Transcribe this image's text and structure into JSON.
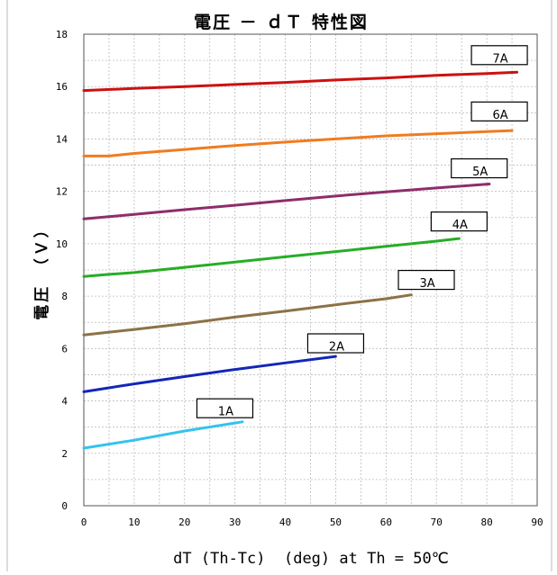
{
  "chart_data": {
    "type": "line",
    "title": "電圧 － ｄＴ 特性図",
    "xlabel": "dT (Th-Tc)  (deg) at Th = 50℃",
    "ylabel": "電圧　（Ｖ）",
    "xlim": [
      0,
      90
    ],
    "ylim": [
      0,
      18
    ],
    "xticks": [
      0,
      10,
      20,
      30,
      40,
      50,
      60,
      70,
      80,
      90
    ],
    "yticks": [
      0,
      2,
      4,
      6,
      8,
      10,
      12,
      14,
      16,
      18
    ],
    "grid": true,
    "series": [
      {
        "name": "1A",
        "color": "#33c3ee",
        "x": [
          0,
          10,
          20,
          31.5
        ],
        "y": [
          2.2,
          2.5,
          2.85,
          3.2
        ]
      },
      {
        "name": "2A",
        "color": "#1326b8",
        "x": [
          0,
          5,
          10,
          20,
          30,
          40,
          50
        ],
        "y": [
          4.35,
          4.5,
          4.65,
          4.93,
          5.2,
          5.45,
          5.7
        ]
      },
      {
        "name": "3A",
        "color": "#8c7246",
        "x": [
          0,
          10,
          20,
          30,
          40,
          50,
          60,
          65
        ],
        "y": [
          6.52,
          6.73,
          6.95,
          7.2,
          7.43,
          7.67,
          7.9,
          8.05
        ]
      },
      {
        "name": "4A",
        "color": "#27ad27",
        "x": [
          0,
          5,
          10,
          20,
          30,
          40,
          50,
          60,
          70,
          74.5
        ],
        "y": [
          8.75,
          8.83,
          8.9,
          9.1,
          9.3,
          9.5,
          9.7,
          9.9,
          10.1,
          10.2
        ]
      },
      {
        "name": "5A",
        "color": "#8f2d6a",
        "x": [
          0,
          10,
          20,
          30,
          40,
          50,
          60,
          70,
          80.5
        ],
        "y": [
          10.95,
          11.12,
          11.3,
          11.47,
          11.65,
          11.82,
          11.98,
          12.13,
          12.28
        ]
      },
      {
        "name": "6A",
        "color": "#f07c1f",
        "x": [
          0,
          5,
          10,
          20,
          30,
          40,
          50,
          60,
          70,
          80,
          85
        ],
        "y": [
          13.35,
          13.35,
          13.45,
          13.6,
          13.75,
          13.88,
          14.0,
          14.12,
          14.2,
          14.28,
          14.32
        ]
      },
      {
        "name": "7A",
        "color": "#cc1111",
        "x": [
          0,
          10,
          20,
          30,
          40,
          50,
          60,
          70,
          80,
          86
        ],
        "y": [
          15.85,
          15.93,
          16.0,
          16.08,
          16.16,
          16.25,
          16.33,
          16.43,
          16.5,
          16.55
        ]
      }
    ],
    "annotations": [
      {
        "text": "1A",
        "x": 28,
        "y": 3.72
      },
      {
        "text": "2A",
        "x": 50,
        "y": 6.2
      },
      {
        "text": "3A",
        "x": 68,
        "y": 8.62
      },
      {
        "text": "4A",
        "x": 74.5,
        "y": 10.85
      },
      {
        "text": "5A",
        "x": 78.5,
        "y": 12.88
      },
      {
        "text": "6A",
        "x": 82.5,
        "y": 15.05
      },
      {
        "text": "7A",
        "x": 82.5,
        "y": 17.2
      }
    ]
  }
}
